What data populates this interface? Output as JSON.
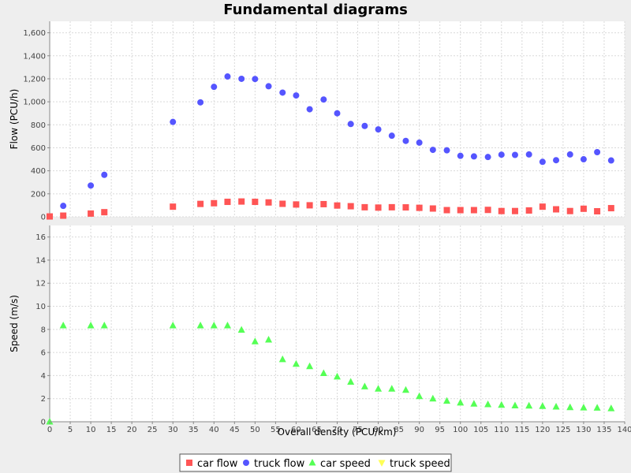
{
  "window": {
    "background": "#eeeeee"
  },
  "chart_data": {
    "type": "scatter",
    "title": "Fundamental diagrams",
    "xlabel": "Overall density (PCU/km)",
    "xlim": [
      0,
      140
    ],
    "xticks": [
      0,
      5,
      10,
      15,
      20,
      25,
      30,
      35,
      40,
      45,
      50,
      55,
      60,
      65,
      70,
      75,
      80,
      85,
      90,
      95,
      100,
      105,
      110,
      115,
      120,
      125,
      130,
      135,
      140
    ],
    "grid": true,
    "legend_position": "bottom",
    "panels": [
      {
        "ylabel": "Flow (PCU/h)",
        "ylim": [
          0,
          1700
        ],
        "yticks": [
          0,
          200,
          400,
          600,
          800,
          1000,
          1200,
          1400,
          1600
        ],
        "ytick_labels": [
          "0",
          "200",
          "400",
          "600",
          "800",
          "1,000",
          "1,200",
          "1,400",
          "1,600"
        ],
        "series": [
          {
            "name": "car flow",
            "color": "#ff5555",
            "marker": "square",
            "points": [
              [
                0,
                3
              ],
              [
                3.3,
                10
              ],
              [
                10,
                28
              ],
              [
                13.3,
                40
              ],
              [
                30,
                88
              ],
              [
                36.7,
                112
              ],
              [
                40,
                118
              ],
              [
                43.3,
                130
              ],
              [
                46.7,
                133
              ],
              [
                50,
                130
              ],
              [
                53.3,
                125
              ],
              [
                56.7,
                113
              ],
              [
                60,
                107
              ],
              [
                63.3,
                100
              ],
              [
                66.7,
                110
              ],
              [
                70,
                98
              ],
              [
                73.3,
                92
              ],
              [
                76.7,
                83
              ],
              [
                80,
                80
              ],
              [
                83.3,
                83
              ],
              [
                86.7,
                82
              ],
              [
                90,
                78
              ],
              [
                93.3,
                72
              ],
              [
                96.7,
                58
              ],
              [
                100,
                58
              ],
              [
                103.3,
                58
              ],
              [
                106.7,
                60
              ],
              [
                110,
                50
              ],
              [
                113.3,
                50
              ],
              [
                116.7,
                55
              ],
              [
                120,
                88
              ],
              [
                123.3,
                65
              ],
              [
                126.7,
                50
              ],
              [
                130,
                70
              ],
              [
                133.3,
                48
              ],
              [
                136.7,
                75
              ]
            ]
          },
          {
            "name": "truck flow",
            "color": "#5555ff",
            "marker": "circle",
            "points": [
              [
                3.3,
                95
              ],
              [
                10,
                272
              ],
              [
                13.3,
                365
              ],
              [
                30,
                825
              ],
              [
                36.7,
                995
              ],
              [
                40,
                1130
              ],
              [
                43.3,
                1220
              ],
              [
                46.7,
                1200
              ],
              [
                50,
                1198
              ],
              [
                53.3,
                1135
              ],
              [
                56.7,
                1080
              ],
              [
                60,
                1055
              ],
              [
                63.3,
                935
              ],
              [
                66.7,
                1020
              ],
              [
                70,
                900
              ],
              [
                73.3,
                807
              ],
              [
                76.7,
                790
              ],
              [
                80,
                760
              ],
              [
                83.3,
                705
              ],
              [
                86.7,
                660
              ],
              [
                90,
                645
              ],
              [
                93.3,
                582
              ],
              [
                96.7,
                578
              ],
              [
                100,
                530
              ],
              [
                103.3,
                525
              ],
              [
                106.7,
                520
              ],
              [
                110,
                540
              ],
              [
                113.3,
                538
              ],
              [
                116.7,
                542
              ],
              [
                120,
                478
              ],
              [
                123.3,
                492
              ],
              [
                126.7,
                542
              ],
              [
                130,
                500
              ],
              [
                133.3,
                562
              ],
              [
                136.7,
                490
              ]
            ]
          }
        ]
      },
      {
        "ylabel": "Speed (m/s)",
        "ylim": [
          0,
          17
        ],
        "yticks": [
          0,
          2,
          4,
          6,
          8,
          10,
          12,
          14,
          16
        ],
        "ytick_labels": [
          "0",
          "2",
          "4",
          "6",
          "8",
          "10",
          "12",
          "14",
          "16"
        ],
        "series": [
          {
            "name": "car speed",
            "color": "#55ff55",
            "marker": "triangle-up",
            "points": [
              [
                0,
                0
              ],
              [
                3.3,
                8.33
              ],
              [
                10,
                8.33
              ],
              [
                13.3,
                8.33
              ],
              [
                30,
                8.33
              ],
              [
                36.7,
                8.33
              ],
              [
                40,
                8.33
              ],
              [
                43.3,
                8.33
              ],
              [
                46.7,
                7.95
              ],
              [
                50,
                6.95
              ],
              [
                53.3,
                7.1
              ],
              [
                56.7,
                5.4
              ],
              [
                60,
                5.0
              ],
              [
                63.3,
                4.8
              ],
              [
                66.7,
                4.2
              ],
              [
                70,
                3.9
              ],
              [
                73.3,
                3.45
              ],
              [
                76.7,
                3.05
              ],
              [
                80,
                2.85
              ],
              [
                83.3,
                2.85
              ],
              [
                86.7,
                2.75
              ],
              [
                90,
                2.2
              ],
              [
                93.3,
                2.0
              ],
              [
                96.7,
                1.8
              ],
              [
                100,
                1.65
              ],
              [
                103.3,
                1.55
              ],
              [
                106.7,
                1.5
              ],
              [
                110,
                1.45
              ],
              [
                113.3,
                1.4
              ],
              [
                116.7,
                1.38
              ],
              [
                120,
                1.35
              ],
              [
                123.3,
                1.3
              ],
              [
                126.7,
                1.25
              ],
              [
                130,
                1.22
              ],
              [
                133.3,
                1.2
              ],
              [
                136.7,
                1.15
              ]
            ]
          },
          {
            "name": "truck speed",
            "color": "#ffff55",
            "marker": "triangle-down",
            "points": []
          }
        ]
      }
    ],
    "legend": [
      {
        "name": "car flow",
        "color": "#ff5555",
        "marker": "square"
      },
      {
        "name": "truck flow",
        "color": "#5555ff",
        "marker": "circle"
      },
      {
        "name": "car speed",
        "color": "#55ff55",
        "marker": "triangle-up"
      },
      {
        "name": "truck speed",
        "color": "#ffff55",
        "marker": "triangle-down"
      }
    ]
  }
}
